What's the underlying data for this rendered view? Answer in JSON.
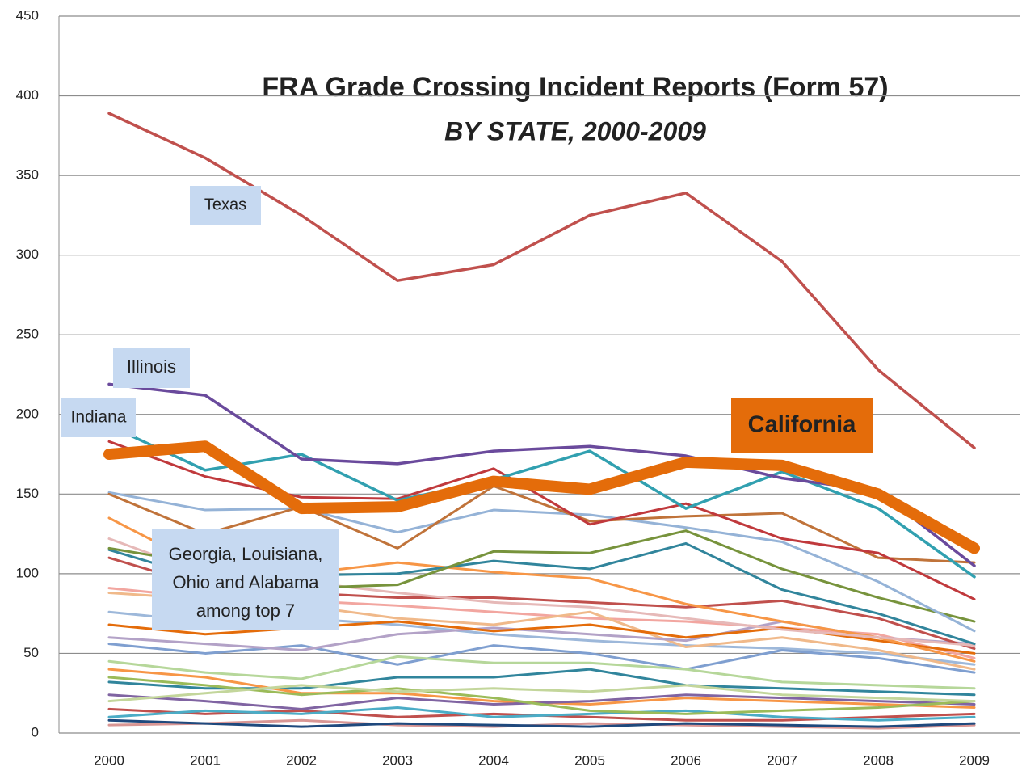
{
  "chart_data": {
    "type": "line",
    "title": "FRA Grade Crossing Incident Reports (Form 57)",
    "subtitle": "BY STATE, 2000-2009",
    "categories": [
      "2000",
      "2001",
      "2002",
      "2003",
      "2004",
      "2005",
      "2006",
      "2007",
      "2008",
      "2009"
    ],
    "ylim": [
      0,
      450
    ],
    "yticks": [
      0,
      50,
      100,
      150,
      200,
      250,
      300,
      350,
      400,
      450
    ],
    "grid": true,
    "series": [
      {
        "color": "#f2a6a0",
        "values": [
          91,
          85,
          83,
          80,
          76,
          72,
          70,
          66,
          62,
          47
        ]
      },
      {
        "color": "#9db8da",
        "values": [
          76,
          70,
          72,
          68,
          62,
          58,
          55,
          53,
          50,
          43
        ]
      },
      {
        "color": "#f0b98a",
        "values": [
          88,
          84,
          80,
          72,
          68,
          76,
          54,
          60,
          52,
          40
        ]
      },
      {
        "color": "#7f9fd0",
        "values": [
          56,
          50,
          55,
          43,
          55,
          50,
          40,
          52,
          47,
          38
        ]
      },
      {
        "color": "#b6d79a",
        "values": [
          45,
          38,
          34,
          48,
          44,
          44,
          40,
          32,
          30,
          28
        ]
      },
      {
        "color": "#31859c",
        "values": [
          32,
          28,
          28,
          35,
          35,
          40,
          30,
          28,
          26,
          24
        ]
      },
      {
        "color": "#f79646",
        "values": [
          40,
          35,
          25,
          25,
          20,
          18,
          22,
          20,
          18,
          16
        ]
      },
      {
        "color": "#8064a2",
        "values": [
          24,
          20,
          15,
          22,
          18,
          20,
          24,
          22,
          20,
          18
        ]
      },
      {
        "color": "#c0504d",
        "values": [
          15,
          12,
          14,
          10,
          12,
          10,
          8,
          8,
          10,
          12
        ]
      },
      {
        "color": "#4bacc6",
        "values": [
          10,
          14,
          12,
          16,
          10,
          12,
          14,
          10,
          8,
          10
        ]
      },
      {
        "color": "#9bbb59",
        "values": [
          35,
          30,
          24,
          28,
          22,
          14,
          12,
          14,
          16,
          20
        ]
      },
      {
        "color": "#d99694",
        "values": [
          5,
          6,
          8,
          5,
          4,
          6,
          5,
          4,
          3,
          5
        ]
      },
      {
        "color": "#c3d69b",
        "values": [
          20,
          25,
          30,
          26,
          28,
          26,
          30,
          24,
          22,
          20
        ]
      },
      {
        "color": "#b3a2c7",
        "values": [
          60,
          56,
          52,
          62,
          66,
          62,
          58,
          70,
          60,
          56
        ]
      },
      {
        "color": "#e46c0a",
        "values": [
          68,
          62,
          66,
          70,
          64,
          68,
          60,
          66,
          58,
          50
        ]
      },
      {
        "color": "#1f497d",
        "values": [
          8,
          6,
          4,
          6,
          5,
          4,
          6,
          5,
          4,
          6
        ]
      },
      {
        "color": "#c0504d",
        "values": [
          110,
          92,
          88,
          85,
          85,
          82,
          79,
          83,
          72,
          53
        ]
      },
      {
        "color": "#f79646",
        "values": [
          135,
          104,
          100,
          107,
          101,
          97,
          81,
          70,
          60,
          45
        ]
      },
      {
        "color": "#e6b9b8",
        "values": [
          122,
          100,
          95,
          88,
          82,
          79,
          72,
          65,
          60,
          55
        ]
      },
      {
        "color": "#31859c",
        "values": [
          115,
          97,
          99,
          100,
          108,
          103,
          119,
          90,
          75,
          56
        ]
      },
      {
        "color": "#77933c",
        "values": [
          116,
          106,
          91,
          93,
          114,
          113,
          127,
          103,
          85,
          70
        ]
      },
      {
        "color": "#95b3d7",
        "values": [
          151,
          140,
          141,
          126,
          140,
          137,
          129,
          120,
          95,
          64
        ]
      },
      {
        "color": "#c0733a",
        "values": [
          150,
          125,
          142,
          116,
          155,
          133,
          136,
          138,
          110,
          107
        ]
      },
      {
        "color": "#c0393c",
        "values": [
          183,
          161,
          148,
          147,
          166,
          131,
          144,
          122,
          113,
          84
        ]
      },
      {
        "name": "Texas",
        "color": "#c0504d",
        "values": [
          389,
          361,
          325,
          284,
          294,
          325,
          339,
          296,
          228,
          179
        ]
      },
      {
        "name": "Indiana",
        "color": "#31a0b0",
        "values": [
          193,
          165,
          175,
          146,
          159,
          177,
          141,
          164,
          141,
          98
        ]
      },
      {
        "name": "Illinois",
        "color": "#6a4a9c",
        "values": [
          219,
          212,
          172,
          169,
          177,
          180,
          174,
          160,
          152,
          105
        ]
      },
      {
        "name": "California",
        "color": "#e46c0a",
        "values": [
          175,
          180,
          141,
          142,
          158,
          153,
          170,
          168,
          150,
          116
        ]
      }
    ],
    "annotations": [
      {
        "text": [
          "Georgia, Louisiana,",
          "Ohio and Alabama",
          "among top 7"
        ]
      }
    ]
  }
}
